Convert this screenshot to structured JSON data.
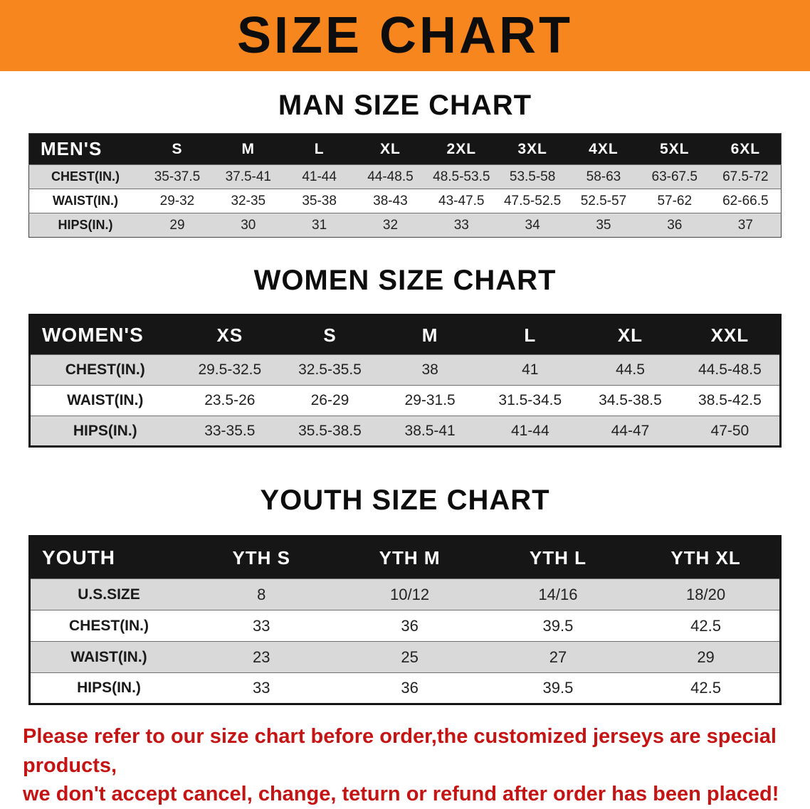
{
  "theme": {
    "banner_bg": "#f6861d",
    "header_bar_bg": "#161616",
    "stripe_gray": "#d9d9d9",
    "notice_red": "#c51414"
  },
  "banner": {
    "title": "SIZE CHART"
  },
  "sections": [
    {
      "heading": "MAN SIZE CHART",
      "table": {
        "header": [
          "MEN'S",
          "S",
          "M",
          "L",
          "XL",
          "2XL",
          "3XL",
          "4XL",
          "5XL",
          "6XL"
        ],
        "rows": [
          {
            "label": "CHEST(IN.)",
            "values": [
              "35-37.5",
              "37.5-41",
              "41-44",
              "44-48.5",
              "48.5-53.5",
              "53.5-58",
              "58-63",
              "63-67.5",
              "67.5-72"
            ]
          },
          {
            "label": "WAIST(IN.)",
            "values": [
              "29-32",
              "32-35",
              "35-38",
              "38-43",
              "43-47.5",
              "47.5-52.5",
              "52.5-57",
              "57-62",
              "62-66.5"
            ]
          },
          {
            "label": "HIPS(IN.)",
            "values": [
              "29",
              "30",
              "31",
              "32",
              "33",
              "34",
              "35",
              "36",
              "37"
            ]
          }
        ]
      }
    },
    {
      "heading": "WOMEN SIZE CHART",
      "table": {
        "header": [
          "WOMEN'S",
          "XS",
          "S",
          "M",
          "L",
          "XL",
          "XXL"
        ],
        "rows": [
          {
            "label": "CHEST(IN.)",
            "values": [
              "29.5-32.5",
              "32.5-35.5",
              "38",
              "41",
              "44.5",
              "44.5-48.5"
            ]
          },
          {
            "label": "WAIST(IN.)",
            "values": [
              "23.5-26",
              "26-29",
              "29-31.5",
              "31.5-34.5",
              "34.5-38.5",
              "38.5-42.5"
            ]
          },
          {
            "label": "HIPS(IN.)",
            "values": [
              "33-35.5",
              "35.5-38.5",
              "38.5-41",
              "41-44",
              "44-47",
              "47-50"
            ]
          }
        ]
      }
    },
    {
      "heading": "YOUTH SIZE CHART",
      "table": {
        "header": [
          "YOUTH",
          "YTH S",
          "YTH M",
          "YTH L",
          "YTH XL"
        ],
        "rows": [
          {
            "label": "U.S.SIZE",
            "values": [
              "8",
              "10/12",
              "14/16",
              "18/20"
            ]
          },
          {
            "label": "CHEST(IN.)",
            "values": [
              "33",
              "36",
              "39.5",
              "42.5"
            ]
          },
          {
            "label": "WAIST(IN.)",
            "values": [
              "23",
              "25",
              "27",
              "29"
            ]
          },
          {
            "label": "HIPS(IN.)",
            "values": [
              "33",
              "36",
              "39.5",
              "42.5"
            ]
          }
        ]
      }
    }
  ],
  "notice": {
    "line1": "Please refer to our size chart before order,the customized jerseys are special products,",
    "line2": "we don't accept cancel, change, teturn or refund after order has been placed!"
  }
}
